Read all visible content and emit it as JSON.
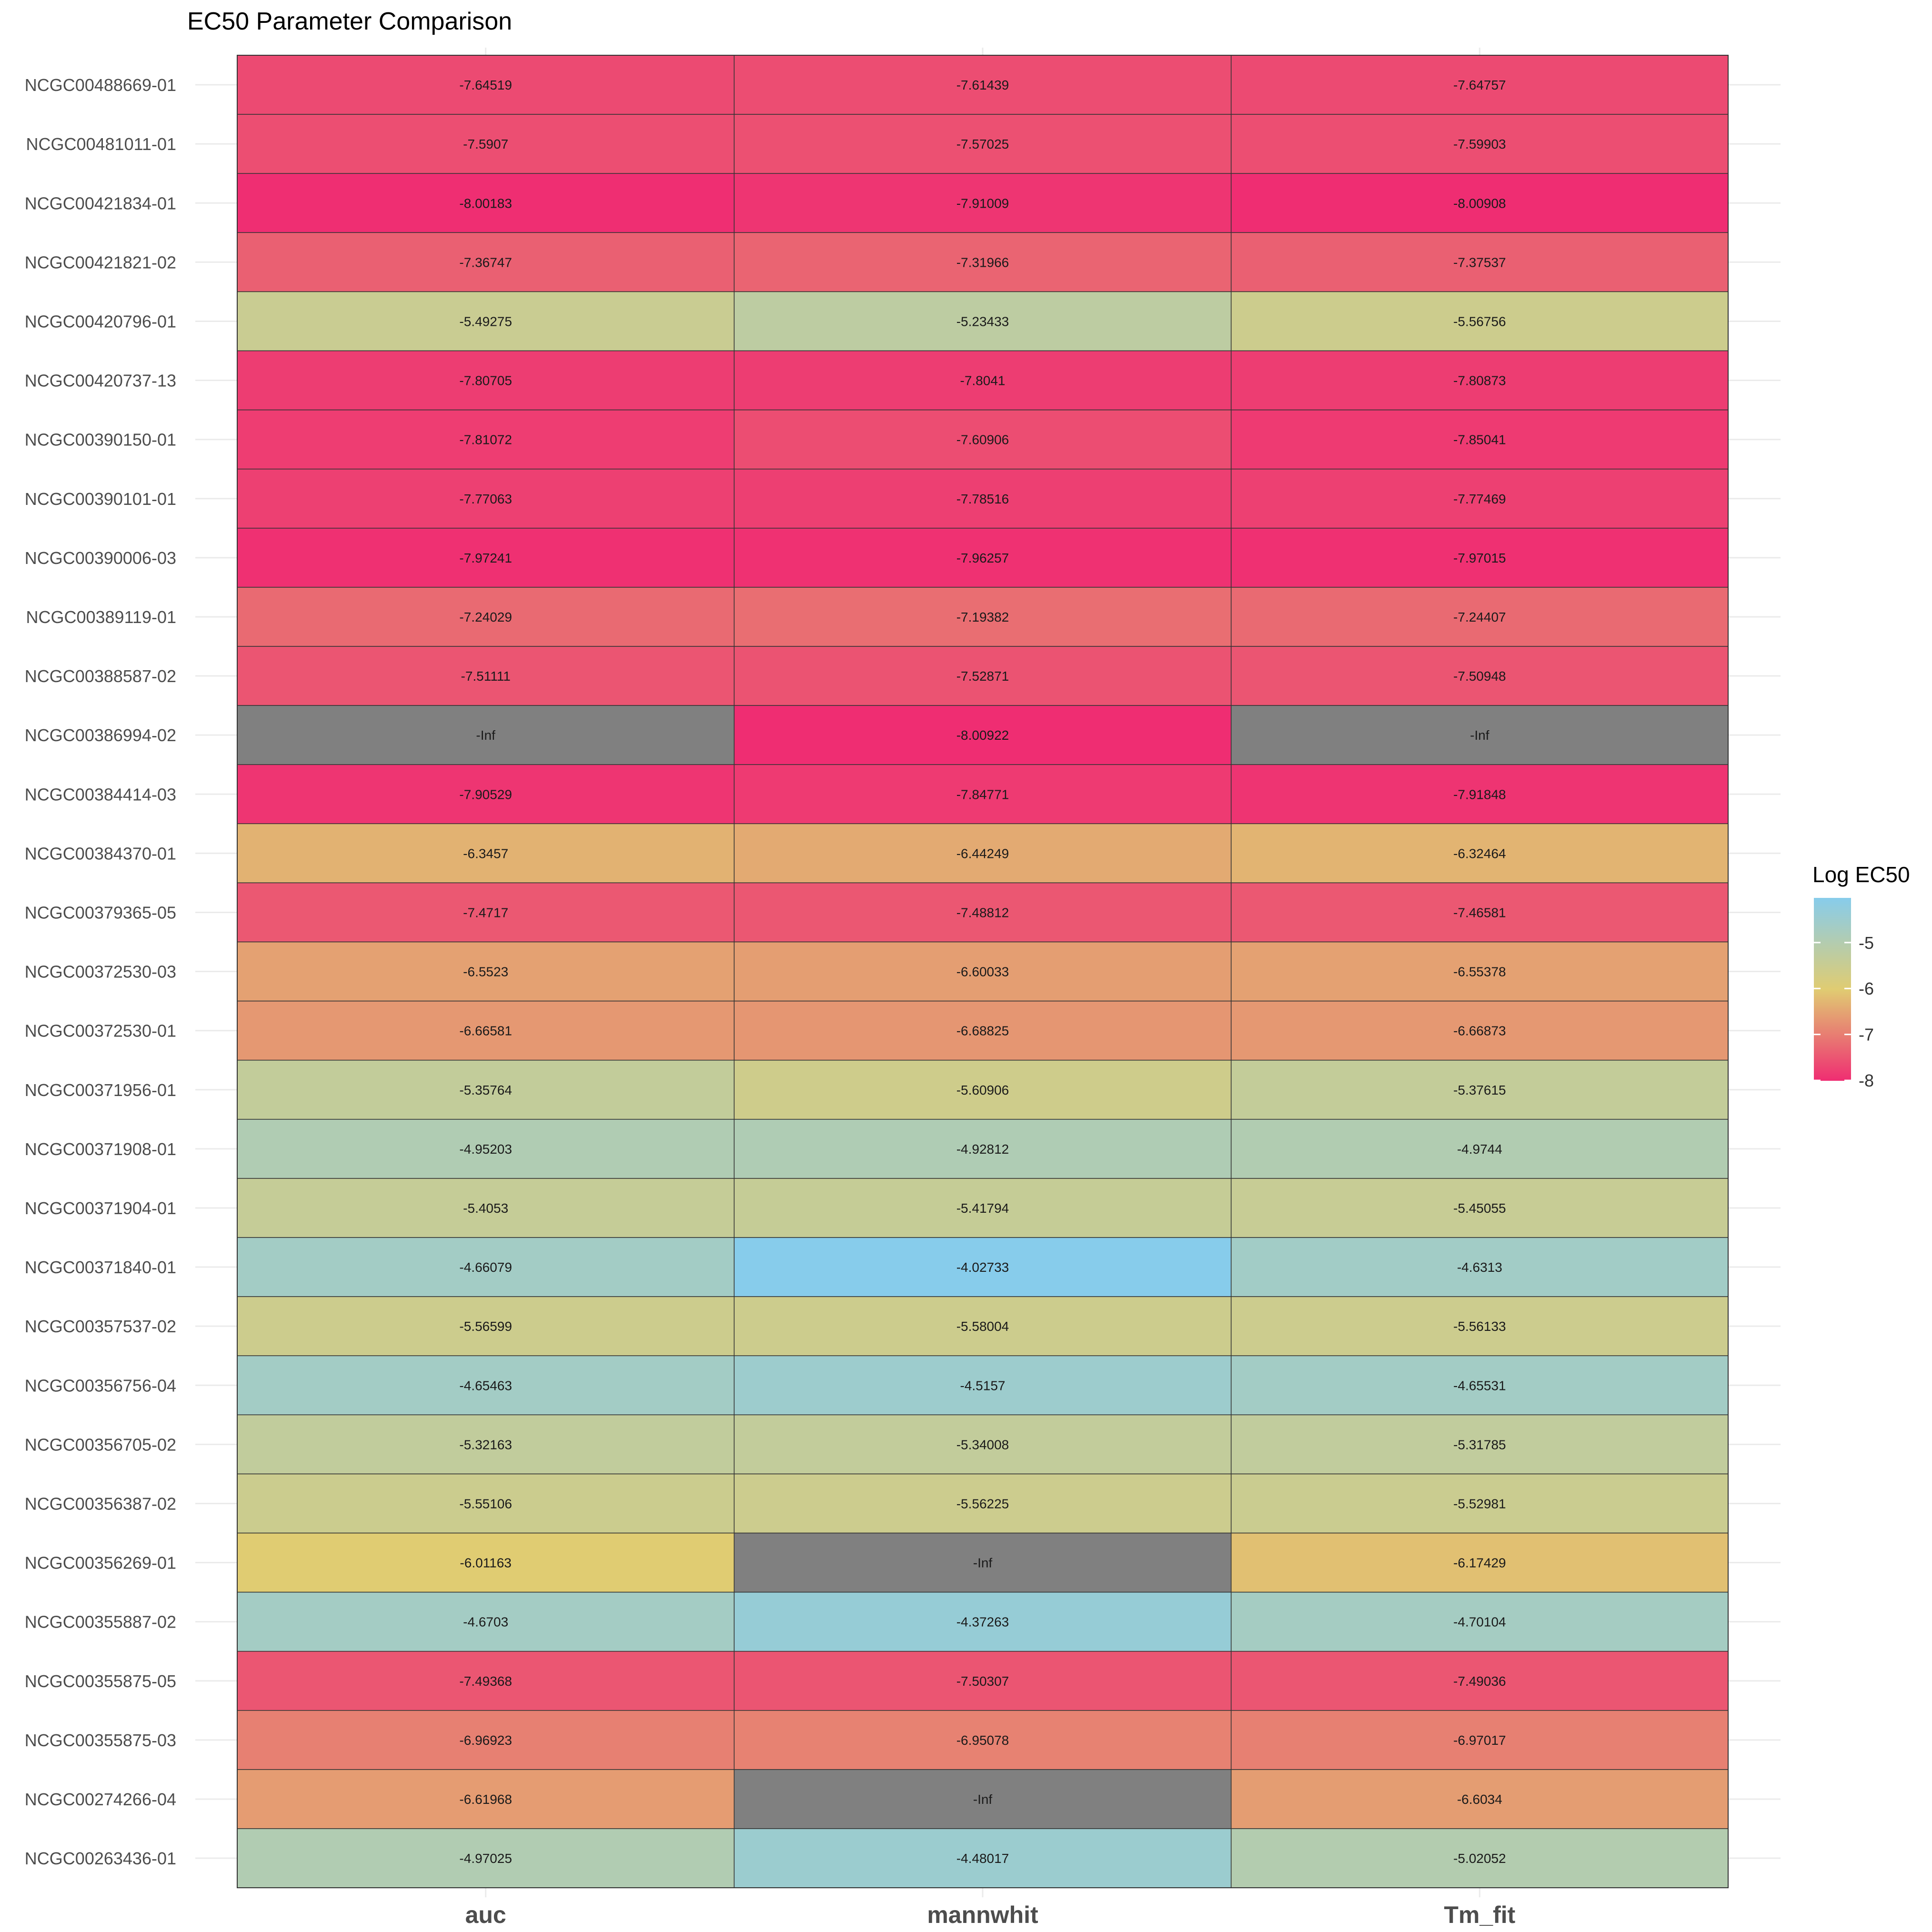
{
  "chart_data": {
    "type": "heatmap",
    "title": "EC50 Parameter Comparison",
    "columns": [
      "auc",
      "mannwhit",
      "Tm_fit"
    ],
    "rows": [
      "NCGC00488669-01",
      "NCGC00481011-01",
      "NCGC00421834-01",
      "NCGC00421821-02",
      "NCGC00420796-01",
      "NCGC00420737-13",
      "NCGC00390150-01",
      "NCGC00390101-01",
      "NCGC00390006-03",
      "NCGC00389119-01",
      "NCGC00388587-02",
      "NCGC00386994-02",
      "NCGC00384414-03",
      "NCGC00384370-01",
      "NCGC00379365-05",
      "NCGC00372530-03",
      "NCGC00372530-01",
      "NCGC00371956-01",
      "NCGC00371908-01",
      "NCGC00371904-01",
      "NCGC00371840-01",
      "NCGC00357537-02",
      "NCGC00356756-04",
      "NCGC00356705-02",
      "NCGC00356387-02",
      "NCGC00356269-01",
      "NCGC00355887-02",
      "NCGC00355875-05",
      "NCGC00355875-03",
      "NCGC00274266-04",
      "NCGC00263436-01"
    ],
    "values": [
      [
        "-7.64519",
        "-7.61439",
        "-7.64757"
      ],
      [
        "-7.5907",
        "-7.57025",
        "-7.59903"
      ],
      [
        "-8.00183",
        "-7.91009",
        "-8.00908"
      ],
      [
        "-7.36747",
        "-7.31966",
        "-7.37537"
      ],
      [
        "-5.49275",
        "-5.23433",
        "-5.56756"
      ],
      [
        "-7.80705",
        "-7.8041",
        "-7.80873"
      ],
      [
        "-7.81072",
        "-7.60906",
        "-7.85041"
      ],
      [
        "-7.77063",
        "-7.78516",
        "-7.77469"
      ],
      [
        "-7.97241",
        "-7.96257",
        "-7.97015"
      ],
      [
        "-7.24029",
        "-7.19382",
        "-7.24407"
      ],
      [
        "-7.51111",
        "-7.52871",
        "-7.50948"
      ],
      [
        "-Inf",
        "-8.00922",
        "-Inf"
      ],
      [
        "-7.90529",
        "-7.84771",
        "-7.91848"
      ],
      [
        "-6.3457",
        "-6.44249",
        "-6.32464"
      ],
      [
        "-7.4717",
        "-7.48812",
        "-7.46581"
      ],
      [
        "-6.5523",
        "-6.60033",
        "-6.55378"
      ],
      [
        "-6.66581",
        "-6.68825",
        "-6.66873"
      ],
      [
        "-5.35764",
        "-5.60906",
        "-5.37615"
      ],
      [
        "-4.95203",
        "-4.92812",
        "-4.9744"
      ],
      [
        "-5.4053",
        "-5.41794",
        "-5.45055"
      ],
      [
        "-4.66079",
        "-4.02733",
        "-4.6313"
      ],
      [
        "-5.56599",
        "-5.58004",
        "-5.56133"
      ],
      [
        "-4.65463",
        "-4.5157",
        "-4.65531"
      ],
      [
        "-5.32163",
        "-5.34008",
        "-5.31785"
      ],
      [
        "-5.55106",
        "-5.56225",
        "-5.52981"
      ],
      [
        "-6.01163",
        "-Inf",
        "-6.17429"
      ],
      [
        "-4.6703",
        "-4.37263",
        "-4.70104"
      ],
      [
        "-7.49368",
        "-7.50307",
        "-7.49036"
      ],
      [
        "-6.96923",
        "-6.95078",
        "-6.97017"
      ],
      [
        "-6.61968",
        "-Inf",
        "-6.6034"
      ],
      [
        "-4.97025",
        "-4.48017",
        "-5.02052"
      ]
    ],
    "legend": {
      "title": "Log EC50",
      "ticks": [
        "-5",
        "-6",
        "-7",
        "-8"
      ],
      "tick_values": [
        -5,
        -6,
        -7,
        -8
      ],
      "range": [
        -8.00922,
        -4.02733
      ],
      "placement": "right"
    },
    "color_scale": {
      "low": "#EF2D72",
      "mid": "#E0CC72",
      "high": "#87CCEB",
      "na_color": "#808080"
    },
    "grid": true
  }
}
